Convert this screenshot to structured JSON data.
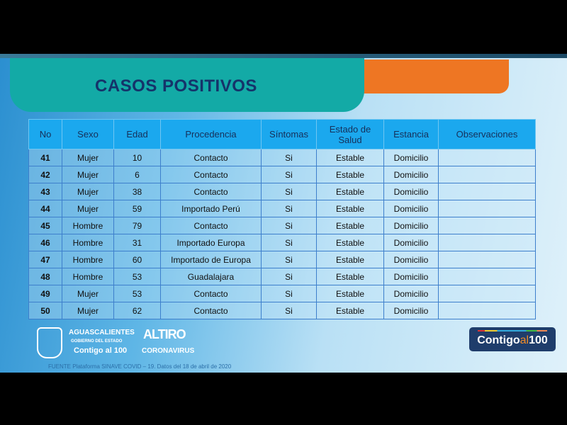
{
  "title": "CASOS POSITIVOS",
  "table": {
    "headers": [
      "No",
      "Sexo",
      "Edad",
      "Procedencia",
      "Síntomas",
      "Estado de Salud",
      "Estancia",
      "Observaciones"
    ],
    "rows": [
      [
        "41",
        "Mujer",
        "10",
        "Contacto",
        "Si",
        "Estable",
        "Domicilio",
        ""
      ],
      [
        "42",
        "Mujer",
        "6",
        "Contacto",
        "Si",
        "Estable",
        "Domicilio",
        ""
      ],
      [
        "43",
        "Mujer",
        "38",
        "Contacto",
        "Si",
        "Estable",
        "Domicilio",
        ""
      ],
      [
        "44",
        "Mujer",
        "59",
        "Importado Perú",
        "Si",
        "Estable",
        "Domicilio",
        ""
      ],
      [
        "45",
        "Hombre",
        "79",
        "Contacto",
        "Si",
        "Estable",
        "Domicilio",
        ""
      ],
      [
        "46",
        "Hombre",
        "31",
        "Importado Europa",
        "Si",
        "Estable",
        "Domicilio",
        ""
      ],
      [
        "47",
        "Hombre",
        "60",
        "Importado de Europa",
        "Si",
        "Estable",
        "Domicilio",
        ""
      ],
      [
        "48",
        "Hombre",
        "53",
        "Guadalajara",
        "Si",
        "Estable",
        "Domicilio",
        ""
      ],
      [
        "49",
        "Mujer",
        "53",
        "Contacto",
        "Si",
        "Estable",
        "Domicilio",
        ""
      ],
      [
        "50",
        "Mujer",
        "62",
        "Contacto",
        "Si",
        "Estable",
        "Domicilio",
        ""
      ]
    ]
  },
  "logos": {
    "state": "AGUASCALIENTES",
    "gov": "GOBIERNO DEL ESTADO",
    "slogan": "Contigo al 100",
    "altiro": "ALTIRO",
    "coronavirus": "CORONAVIRUS"
  },
  "badge": {
    "a": "Contigo",
    "b": "al",
    "c": "100"
  },
  "source": "FUENTE  Plataforma SINAVE COVID – 19. Datos del 18 de abril de 2020",
  "colors": {
    "teal": "#13aaa6",
    "orange": "#ee7623",
    "header": "#1ba8ee",
    "title": "#15336a"
  }
}
